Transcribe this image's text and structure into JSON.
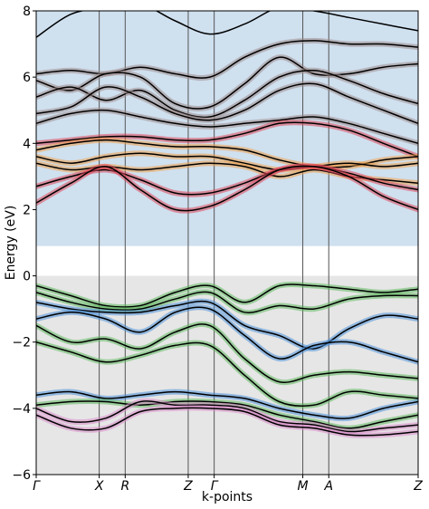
{
  "chart_data": {
    "type": "line",
    "title": "",
    "xlabel": "k-points",
    "ylabel": "Energy (eV)",
    "ylim": [
      -6,
      8
    ],
    "yticks": [
      -6,
      -4,
      -2,
      0,
      2,
      4,
      6,
      8
    ],
    "grid": false,
    "legend": "none",
    "kpoints": [
      {
        "label": "Γ",
        "pos": 0.0
      },
      {
        "label": "X",
        "pos": 0.165
      },
      {
        "label": "R",
        "pos": 0.233
      },
      {
        "label": "Z",
        "pos": 0.398
      },
      {
        "label": "Γ",
        "pos": 0.466
      },
      {
        "label": "M",
        "pos": 0.698
      },
      {
        "label": "A",
        "pos": 0.766
      },
      {
        "label": "Z",
        "pos": 1.0
      }
    ],
    "regions": [
      {
        "name": "conduction",
        "from": 0.9,
        "to": 8,
        "color": "#cfe0ef"
      },
      {
        "name": "valence",
        "from": -6,
        "to": 0,
        "color": "#e6e6e6"
      }
    ],
    "colors": {
      "band_line": "#000000",
      "gray_projection": "#9d8a8a",
      "orange_projection": "#f0a04b",
      "red_projection": "#e0475a",
      "green_projection": "#5cb85c",
      "blue_projection": "#4a90d9",
      "pink_projection": "#d98ac8"
    },
    "series": [
      {
        "y": [
          7.2,
          7.9,
          8.1,
          8.2,
          7.7,
          7.3,
          7.6,
          8.1,
          8.0,
          7.8,
          7.6,
          7.4
        ],
        "projection": "none"
      },
      {
        "y": [
          6.1,
          6.2,
          6.1,
          6.3,
          6.1,
          6.0,
          6.6,
          7.0,
          7.1,
          7.0,
          7.0,
          6.9
        ],
        "projection": "gray"
      },
      {
        "y": [
          5.9,
          5.6,
          6.1,
          6.0,
          5.2,
          5.1,
          5.8,
          6.6,
          6.1,
          6.1,
          6.3,
          6.4
        ],
        "projection": "gray"
      },
      {
        "y": [
          5.4,
          5.7,
          5.3,
          5.6,
          5.0,
          4.8,
          5.3,
          6.0,
          6.2,
          5.9,
          5.5,
          5.2
        ],
        "projection": "gray"
      },
      {
        "y": [
          4.9,
          5.1,
          5.7,
          5.4,
          4.9,
          4.7,
          5.0,
          5.6,
          5.8,
          5.4,
          5.0,
          4.6
        ],
        "projection": "gray"
      },
      {
        "y": [
          4.6,
          4.9,
          5.0,
          4.8,
          4.6,
          4.5,
          4.6,
          4.7,
          4.8,
          4.6,
          4.3,
          4.0
        ],
        "projection": "gray"
      },
      {
        "y": [
          4.0,
          4.1,
          4.2,
          4.2,
          4.1,
          4.1,
          4.3,
          4.6,
          4.6,
          4.4,
          4.0,
          3.6
        ],
        "projection": "red"
      },
      {
        "y": [
          3.8,
          4.0,
          4.1,
          4.0,
          3.9,
          3.9,
          3.8,
          3.5,
          3.3,
          3.3,
          3.5,
          3.6
        ],
        "projection": "orange"
      },
      {
        "y": [
          3.6,
          3.4,
          3.6,
          3.7,
          3.6,
          3.6,
          3.4,
          3.2,
          3.3,
          3.4,
          3.3,
          3.4
        ],
        "projection": "orange"
      },
      {
        "y": [
          3.4,
          3.2,
          3.3,
          3.2,
          3.3,
          3.4,
          3.3,
          3.0,
          3.2,
          3.0,
          2.9,
          2.8
        ],
        "projection": "orange"
      },
      {
        "y": [
          2.7,
          3.0,
          3.2,
          2.9,
          2.5,
          2.5,
          2.8,
          3.2,
          3.3,
          3.1,
          2.8,
          2.6
        ],
        "projection": "red"
      },
      {
        "y": [
          2.2,
          2.8,
          3.3,
          2.6,
          2.0,
          2.1,
          2.6,
          3.2,
          3.3,
          3.0,
          2.4,
          2.0
        ],
        "projection": "red"
      },
      {
        "y": [
          -0.3,
          -0.6,
          -0.9,
          -0.9,
          -0.5,
          -0.3,
          -0.8,
          -0.3,
          -0.3,
          -0.4,
          -0.5,
          -0.4
        ],
        "projection": "green"
      },
      {
        "y": [
          -0.5,
          -0.8,
          -1.0,
          -1.0,
          -0.7,
          -0.5,
          -1.1,
          -0.9,
          -1.0,
          -0.7,
          -0.6,
          -0.6
        ],
        "projection": "green"
      },
      {
        "y": [
          -0.8,
          -1.0,
          -1.1,
          -1.1,
          -0.9,
          -0.8,
          -1.5,
          -1.8,
          -2.2,
          -1.6,
          -1.2,
          -1.3
        ],
        "projection": "blue"
      },
      {
        "y": [
          -1.3,
          -1.1,
          -1.3,
          -1.7,
          -1.1,
          -1.0,
          -1.8,
          -2.5,
          -2.1,
          -2.0,
          -2.3,
          -2.6
        ],
        "projection": "blue"
      },
      {
        "y": [
          -1.5,
          -2.0,
          -1.9,
          -2.2,
          -1.7,
          -1.5,
          -2.5,
          -3.2,
          -3.0,
          -2.9,
          -3.0,
          -3.1
        ],
        "projection": "green"
      },
      {
        "y": [
          -2.0,
          -2.3,
          -2.6,
          -2.4,
          -2.1,
          -2.1,
          -3.0,
          -3.8,
          -3.9,
          -3.5,
          -3.6,
          -3.7
        ],
        "projection": "green"
      },
      {
        "y": [
          -3.6,
          -3.5,
          -3.7,
          -3.6,
          -3.5,
          -3.6,
          -3.7,
          -4.0,
          -4.2,
          -4.3,
          -4.0,
          -3.8
        ],
        "projection": "blue"
      },
      {
        "y": [
          -3.9,
          -3.8,
          -3.8,
          -3.9,
          -3.8,
          -3.8,
          -3.9,
          -4.2,
          -4.4,
          -4.6,
          -4.4,
          -4.2
        ],
        "projection": "green"
      },
      {
        "y": [
          -4.0,
          -4.4,
          -4.3,
          -3.8,
          -3.9,
          -3.9,
          -4.0,
          -4.4,
          -4.5,
          -4.7,
          -4.6,
          -4.5
        ],
        "projection": "pink"
      },
      {
        "y": [
          -4.2,
          -4.6,
          -4.6,
          -4.1,
          -4.0,
          -4.0,
          -4.1,
          -4.5,
          -4.6,
          -4.8,
          -4.8,
          -4.7
        ],
        "projection": "pink"
      }
    ]
  }
}
